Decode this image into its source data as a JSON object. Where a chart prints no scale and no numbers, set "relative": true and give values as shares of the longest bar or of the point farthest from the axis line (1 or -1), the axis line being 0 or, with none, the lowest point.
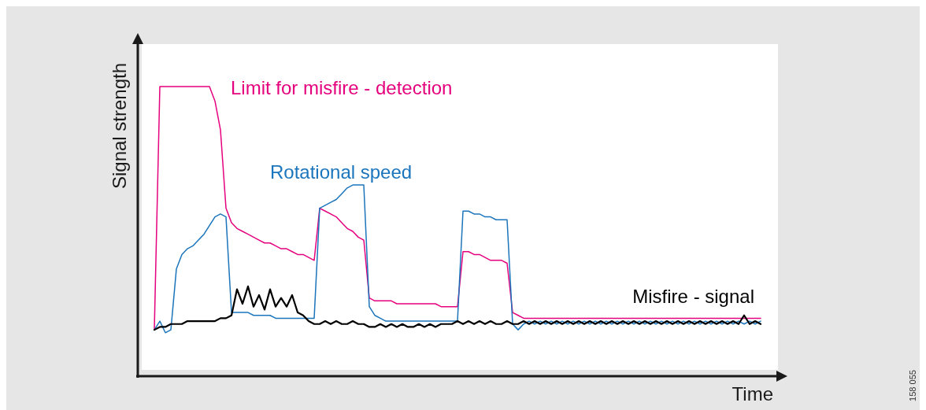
{
  "chart_data": {
    "type": "line",
    "relative": true,
    "xlabel": "Time",
    "ylabel": "Signal strength",
    "annotations": [
      "158 055"
    ],
    "categories": [
      null,
      null,
      null,
      null,
      null,
      null,
      null,
      null,
      null,
      null,
      null,
      null,
      null,
      null,
      null,
      null,
      null,
      null,
      null,
      null,
      null,
      null,
      null,
      null,
      null,
      null,
      null,
      null,
      null,
      null,
      null,
      null,
      null,
      null,
      null,
      null,
      null,
      null,
      null,
      null,
      null,
      null,
      null,
      null,
      null,
      null,
      null,
      null,
      null,
      null,
      null,
      null,
      null,
      null,
      null,
      null,
      null,
      null,
      null,
      null,
      null,
      null,
      null,
      null,
      null,
      null,
      null,
      null,
      null,
      null,
      null,
      null,
      null,
      null,
      null,
      null,
      null,
      null,
      null,
      null,
      null,
      null,
      null,
      null,
      null,
      null,
      null,
      null,
      null,
      null,
      null,
      null,
      null,
      null,
      null,
      null,
      null,
      null,
      null,
      null,
      null,
      null,
      null,
      null,
      null,
      null,
      null,
      null,
      null,
      null,
      null
    ],
    "series": [
      {
        "name": "Limit for misfire - detection",
        "color": "#e5007d",
        "values": [
          0.16,
          1.0,
          1.0,
          1.0,
          1.0,
          1.0,
          1.0,
          1.0,
          1.0,
          1.0,
          1.0,
          0.95,
          0.85,
          0.58,
          0.53,
          0.51,
          0.5,
          0.49,
          0.48,
          0.47,
          0.46,
          0.46,
          0.45,
          0.44,
          0.44,
          0.43,
          0.42,
          0.42,
          0.41,
          0.4,
          0.58,
          0.57,
          0.56,
          0.55,
          0.53,
          0.51,
          0.5,
          0.48,
          0.47,
          0.27,
          0.26,
          0.26,
          0.26,
          0.26,
          0.25,
          0.25,
          0.25,
          0.25,
          0.25,
          0.25,
          0.25,
          0.25,
          0.24,
          0.24,
          0.24,
          0.24,
          0.43,
          0.43,
          0.42,
          0.42,
          0.41,
          0.4,
          0.4,
          0.4,
          0.39,
          0.22,
          0.21,
          0.2,
          0.2,
          0.2,
          0.2,
          0.2,
          0.2,
          0.2,
          0.2,
          0.2,
          0.2,
          0.2,
          0.2,
          0.2,
          0.2,
          0.2,
          0.2,
          0.2,
          0.2,
          0.2,
          0.2,
          0.2,
          0.2,
          0.2,
          0.2,
          0.2,
          0.2,
          0.2,
          0.2,
          0.2,
          0.2,
          0.2,
          0.2,
          0.2,
          0.2,
          0.2,
          0.2,
          0.2,
          0.2,
          0.2,
          0.2,
          0.2,
          0.2,
          0.2,
          0.2
        ]
      },
      {
        "name": "Rotational speed",
        "color": "#1b75bc",
        "values": [
          0.16,
          0.19,
          0.15,
          0.16,
          0.37,
          0.42,
          0.44,
          0.45,
          0.47,
          0.49,
          0.52,
          0.55,
          0.56,
          0.55,
          0.22,
          0.22,
          0.22,
          0.22,
          0.21,
          0.21,
          0.21,
          0.21,
          0.2,
          0.2,
          0.2,
          0.2,
          0.2,
          0.2,
          0.2,
          0.2,
          0.58,
          0.59,
          0.6,
          0.61,
          0.63,
          0.65,
          0.66,
          0.66,
          0.66,
          0.24,
          0.21,
          0.2,
          0.19,
          0.19,
          0.19,
          0.19,
          0.19,
          0.19,
          0.19,
          0.19,
          0.19,
          0.19,
          0.19,
          0.19,
          0.19,
          0.19,
          0.57,
          0.57,
          0.56,
          0.56,
          0.55,
          0.55,
          0.54,
          0.54,
          0.54,
          0.18,
          0.16,
          0.18,
          0.19,
          0.18,
          0.19,
          0.18,
          0.19,
          0.18,
          0.19,
          0.18,
          0.19,
          0.18,
          0.19,
          0.18,
          0.19,
          0.18,
          0.19,
          0.18,
          0.19,
          0.18,
          0.19,
          0.18,
          0.19,
          0.18,
          0.19,
          0.18,
          0.19,
          0.18,
          0.19,
          0.18,
          0.19,
          0.18,
          0.19,
          0.18,
          0.19,
          0.18,
          0.19,
          0.18,
          0.19,
          0.18,
          0.19,
          0.18,
          0.19,
          0.18,
          0.19
        ]
      },
      {
        "name": "Misfire - signal",
        "color": "#000000",
        "values": [
          0.16,
          0.17,
          0.17,
          0.18,
          0.18,
          0.18,
          0.19,
          0.19,
          0.19,
          0.19,
          0.19,
          0.19,
          0.2,
          0.2,
          0.21,
          0.3,
          0.25,
          0.31,
          0.24,
          0.28,
          0.23,
          0.3,
          0.24,
          0.27,
          0.24,
          0.28,
          0.22,
          0.21,
          0.19,
          0.18,
          0.18,
          0.19,
          0.18,
          0.19,
          0.18,
          0.18,
          0.19,
          0.18,
          0.18,
          0.17,
          0.17,
          0.18,
          0.17,
          0.18,
          0.17,
          0.18,
          0.17,
          0.17,
          0.18,
          0.17,
          0.18,
          0.17,
          0.18,
          0.18,
          0.18,
          0.19,
          0.18,
          0.19,
          0.18,
          0.19,
          0.18,
          0.19,
          0.18,
          0.18,
          0.19,
          0.18,
          0.18,
          0.19,
          0.18,
          0.19,
          0.18,
          0.19,
          0.18,
          0.19,
          0.18,
          0.19,
          0.18,
          0.19,
          0.18,
          0.19,
          0.18,
          0.19,
          0.18,
          0.19,
          0.18,
          0.19,
          0.18,
          0.19,
          0.18,
          0.19,
          0.18,
          0.19,
          0.18,
          0.19,
          0.18,
          0.19,
          0.18,
          0.19,
          0.18,
          0.19,
          0.18,
          0.19,
          0.18,
          0.19,
          0.18,
          0.19,
          0.18,
          0.21,
          0.18,
          0.19,
          0.18
        ]
      }
    ]
  }
}
